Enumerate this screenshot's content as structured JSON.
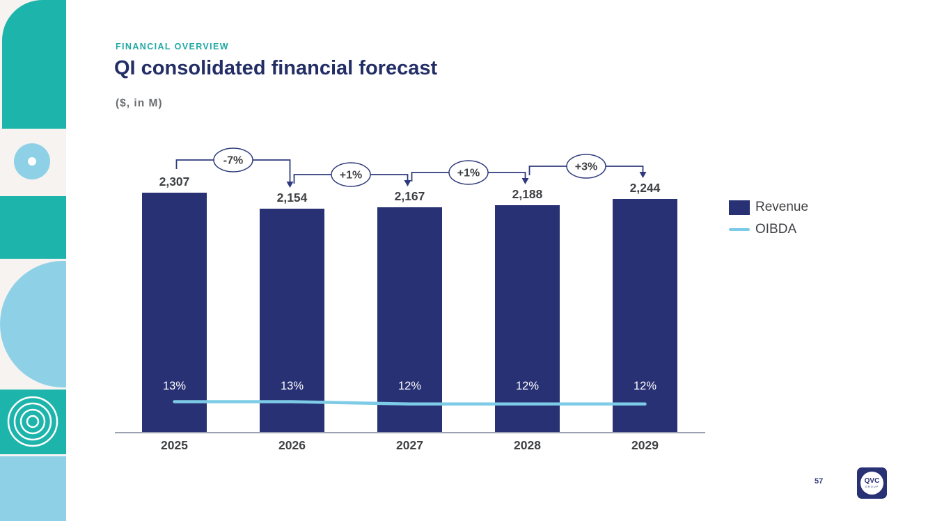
{
  "slide": {
    "eyebrow": "FINANCIAL OVERVIEW",
    "title": "QI consolidated financial forecast",
    "subtitle": "($, in M)",
    "page_number": "57"
  },
  "logo": {
    "line1": "QVC",
    "line2": "GROUP"
  },
  "legend": {
    "items": [
      {
        "label": "Revenue",
        "swatch": "square",
        "color": "#283173"
      },
      {
        "label": "OIBDA",
        "swatch": "line",
        "color": "#7dcbe6"
      }
    ]
  },
  "chart_data": {
    "type": "bar",
    "title": "QI consolidated financial forecast",
    "units": "$, in M",
    "categories": [
      "2025",
      "2026",
      "2027",
      "2028",
      "2029"
    ],
    "series": [
      {
        "name": "Revenue",
        "type": "bar",
        "values": [
          2307,
          2154,
          2167,
          2188,
          2244
        ],
        "labels": [
          "2,307",
          "2,154",
          "2,167",
          "2,188",
          "2,244"
        ],
        "color": "#283173"
      },
      {
        "name": "OIBDA margin",
        "type": "line",
        "values": [
          13,
          13,
          12,
          12,
          12
        ],
        "labels": [
          "13%",
          "13%",
          "12%",
          "12%",
          "12%"
        ],
        "color": "#7dcbe6"
      }
    ],
    "growth_annotations": [
      "-7%",
      "+1%",
      "+1%",
      "+3%"
    ],
    "ylim": [
      0,
      2400
    ],
    "legend_position": "right",
    "grid": false
  },
  "colors": {
    "teal": "#1db4ab",
    "light_blue": "#8ed1e7",
    "bar_navy": "#283173",
    "bracket_navy": "#2e3a7c",
    "title_navy": "#232e66",
    "eyebrow_teal": "#1fa9a3",
    "text_dark": "#3f4043",
    "text_gray": "#6a6d70",
    "axis_gray": "#9aa2b2",
    "background": "#ffffff",
    "sidebar_bg": "#f6f3f1"
  }
}
